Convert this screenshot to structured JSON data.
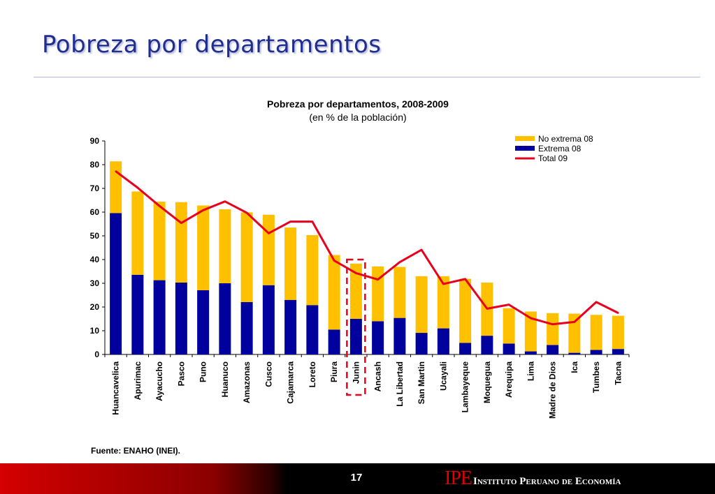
{
  "slide": {
    "title": "Pobreza por departamentos",
    "source": "Fuente: ENAHO (INEI).",
    "page_number": "17",
    "logo_mark": "IPE",
    "logo_text": "Instituto Peruano de Economía"
  },
  "colors": {
    "no_extrema": "#ffc000",
    "extrema": "#00009c",
    "total": "#e8001c",
    "highlight": "#e8001c"
  },
  "chart_data": {
    "type": "bar",
    "stacked": true,
    "title": "Pobreza por departamentos, 2008-2009",
    "subtitle": "(en % de la población)",
    "xlabel": "",
    "ylabel": "",
    "ylim": [
      0,
      90
    ],
    "yticks": [
      0,
      10,
      20,
      30,
      40,
      50,
      60,
      70,
      80,
      90
    ],
    "grid": false,
    "legend_position": "top-right",
    "categories": [
      "Huancavelica",
      "Apurimac",
      "Ayacucho",
      "Pasco",
      "Puno",
      "Huanuco",
      "Amazonas",
      "Cusco",
      "Cajamarca",
      "Loreto",
      "Piura",
      "Junin",
      "Ancash",
      "La Libertad",
      "San Martin",
      "Ucayali",
      "Lambayeque",
      "Moquegua",
      "Arequipa",
      "Lima",
      "Madre de Dios",
      "Ica",
      "Tumbes",
      "Tacna"
    ],
    "highlighted_category": "Junin",
    "series": [
      {
        "name": "Extrema 08",
        "kind": "bar",
        "values": [
          59.6,
          33.6,
          31.3,
          30.3,
          27.1,
          30.0,
          22.1,
          29.2,
          23.0,
          20.8,
          10.5,
          15.0,
          14.0,
          15.4,
          9.1,
          11.0,
          4.9,
          7.9,
          4.6,
          1.3,
          4.0,
          0.7,
          1.9,
          2.3
        ]
      },
      {
        "name": "No extrema 08",
        "kind": "bar",
        "values": [
          21.8,
          35.1,
          33.1,
          33.9,
          35.7,
          31.2,
          37.8,
          29.7,
          30.5,
          29.5,
          31.4,
          23.3,
          23.1,
          21.5,
          23.9,
          22.0,
          27.0,
          22.4,
          14.9,
          16.8,
          13.4,
          16.5,
          14.8,
          14.0
        ]
      },
      {
        "name": "Total 09",
        "kind": "line",
        "values": [
          77.2,
          70.3,
          62.6,
          55.4,
          60.8,
          64.5,
          59.7,
          51.1,
          56.0,
          56.0,
          39.6,
          34.3,
          31.6,
          38.9,
          44.1,
          29.7,
          31.8,
          19.3,
          21.0,
          15.3,
          12.7,
          13.7,
          22.1,
          17.5
        ]
      }
    ]
  }
}
